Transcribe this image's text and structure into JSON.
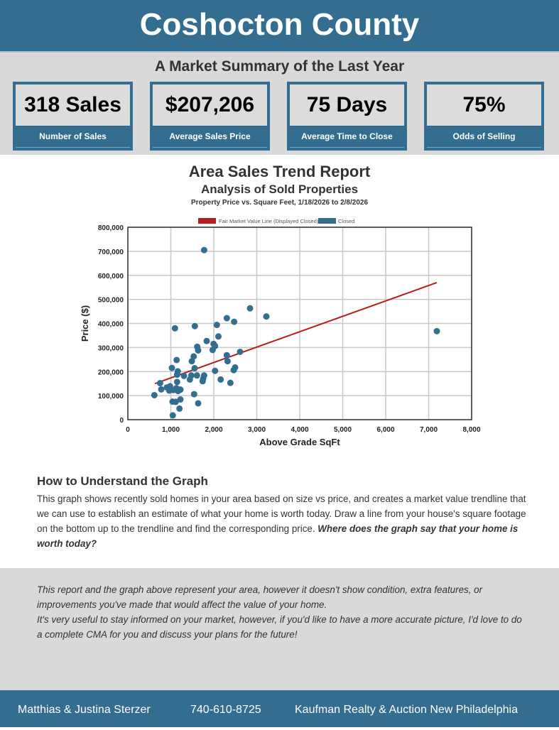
{
  "header": {
    "title": "Coshocton County"
  },
  "summary": {
    "title": "A Market Summary of the Last Year",
    "cards": [
      {
        "value": "318 Sales",
        "label": "Number of Sales"
      },
      {
        "value": "$207,206",
        "label": "Average Sales Price"
      },
      {
        "value": "75 Days",
        "label": "Average Time to Close"
      },
      {
        "value": "75%",
        "label": "Odds of Selling"
      }
    ]
  },
  "report": {
    "title": "Area Sales Trend Report",
    "subtitle": "Analysis of Sold Properties",
    "caption": "Property Price vs. Square Feet, 1/18/2026 to 2/8/2026"
  },
  "chart_data": {
    "type": "scatter",
    "xlabel": "Above Grade SqFt",
    "ylabel": "Price ($)",
    "xlim": [
      0,
      8000
    ],
    "ylim": [
      0,
      800000
    ],
    "grid": true,
    "legend": "top",
    "xticks": [
      "0",
      "1,000",
      "2,000",
      "3,000",
      "4,000",
      "5,000",
      "6,000",
      "7,000",
      "8,000"
    ],
    "yticks": [
      "0",
      "100,000",
      "200,000",
      "300,000",
      "400,000",
      "500,000",
      "600,000",
      "700,000",
      "800,000"
    ],
    "colors": {
      "line": "#b81c1c",
      "points": "#336d8f"
    },
    "series": [
      {
        "name": "Fair Market Value Line (Displayed Closed)",
        "type": "line",
        "points": [
          [
            630,
            150000
          ],
          [
            7190,
            570000
          ]
        ]
      },
      {
        "name": "Closed",
        "type": "scatter",
        "points": [
          [
            1775,
            705000
          ],
          [
            2843,
            463000
          ],
          [
            3223,
            429000
          ],
          [
            2303,
            422000
          ],
          [
            2474,
            407000
          ],
          [
            1096,
            380000
          ],
          [
            1559,
            389000
          ],
          [
            2071,
            394000
          ],
          [
            2107,
            346000
          ],
          [
            1835,
            327000
          ],
          [
            1615,
            303000
          ],
          [
            1636,
            288000
          ],
          [
            1995,
            315000
          ],
          [
            2028,
            306000
          ],
          [
            1973,
            290000
          ],
          [
            2612,
            282000
          ],
          [
            2303,
            268000
          ],
          [
            2320,
            243000
          ],
          [
            1532,
            263000
          ],
          [
            1488,
            243000
          ],
          [
            1135,
            248000
          ],
          [
            1025,
            215000
          ],
          [
            1162,
            201000
          ],
          [
            1146,
            187000
          ],
          [
            1306,
            182000
          ],
          [
            1554,
            214000
          ],
          [
            1476,
            184000
          ],
          [
            1608,
            184000
          ],
          [
            1774,
            184000
          ],
          [
            1752,
            170000
          ],
          [
            1740,
            160000
          ],
          [
            1443,
            167000
          ],
          [
            2029,
            203000
          ],
          [
            2160,
            167000
          ],
          [
            2386,
            153000
          ],
          [
            2496,
            217000
          ],
          [
            2463,
            206000
          ],
          [
            750,
            152000
          ],
          [
            777,
            126000
          ],
          [
            617,
            102000
          ],
          [
            909,
            134000
          ],
          [
            981,
            139000
          ],
          [
            964,
            121000
          ],
          [
            1058,
            123000
          ],
          [
            1129,
            131000
          ],
          [
            1146,
            157000
          ],
          [
            1223,
            125000
          ],
          [
            1168,
            119000
          ],
          [
            1542,
            106000
          ],
          [
            1041,
            75000
          ],
          [
            1113,
            74000
          ],
          [
            1223,
            84000
          ],
          [
            1636,
            68000
          ],
          [
            1201,
            46000
          ],
          [
            1046,
            18000
          ],
          [
            7190,
            368000
          ]
        ]
      }
    ]
  },
  "how": {
    "title": "How to Understand the Graph",
    "text": "This graph shows recently sold homes in your area based on size vs price, and creates a market value trendline that we can use to establish an estimate of what your home is worth today. Draw a line from your house's square footage on the bottom up to the trendline and find the corresponding price. ",
    "bold": "Where does the graph say that your home is worth today?"
  },
  "note": {
    "line1": "This report and the graph above represent your area, however it doesn't show condition, extra features, or improvements you've made that would affect the value of your home.",
    "line2": "It's very useful to stay informed on your market, however, if you'd like to have a more accurate picture, I'd love to do a complete CMA for you and discuss your plans for the future!"
  },
  "footer": {
    "agents": "Matthias & Justina Sterzer",
    "phone": "740-610-8725",
    "brokerage": "Kaufman Realty & Auction New Philadelphia"
  }
}
